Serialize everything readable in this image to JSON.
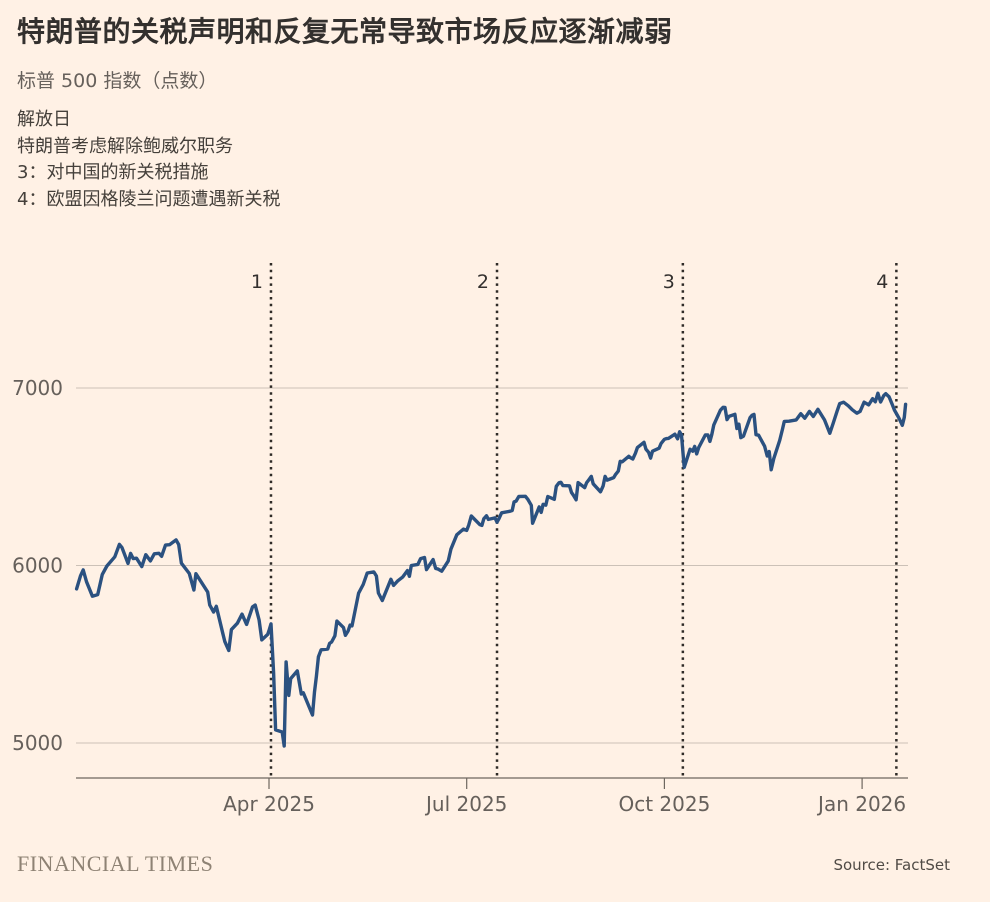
{
  "page": {
    "background": "#FFF1E5"
  },
  "header": {
    "title": "特朗普的关税声明和反复无常导致市场反应逐渐减弱",
    "subtitle": "标普 500 指数（点数）"
  },
  "annotations": [
    "解放日",
    "特朗普考虑解除鲍威尔职务",
    "3：对中国的新关税措施",
    "4：欧盟因格陵兰问题遭遇新关税"
  ],
  "footer": {
    "brand": "FINANCIAL TIMES",
    "source": "Source: FactSet"
  },
  "chart_data": {
    "type": "line",
    "title": "特朗普的关税声明和反复无常导致市场反应逐渐减弱",
    "ylabel": "标普 500 指数（点数）",
    "x_unit": "months_since_jan_2025",
    "xlim": [
      0.08,
      12.66
    ],
    "ylim": [
      4800,
      7700
    ],
    "grid": "horizontal",
    "legend": "none",
    "y_ticks": [
      5000,
      6000,
      7000
    ],
    "x_ticks": [
      {
        "label": "Apr 2025",
        "m": 3
      },
      {
        "label": "Jul 2025",
        "m": 6
      },
      {
        "label": "Oct 2025",
        "m": 9
      },
      {
        "label": "Jan 2026",
        "m": 12
      }
    ],
    "event_lines": [
      {
        "label": "1",
        "m": 3.03,
        "note": "解放日"
      },
      {
        "label": "2",
        "m": 6.46,
        "note": "特朗普考虑解除鲍威尔职务"
      },
      {
        "label": "3",
        "m": 9.28,
        "note": "对中国的新关税措施"
      },
      {
        "label": "4",
        "m": 12.52,
        "note": "欧盟因格陵兰问题遭遇新关税"
      }
    ],
    "colors": {
      "line": "#2B5180",
      "grid": "#CCC1B7",
      "axis": "#6E675F",
      "tick_text": "#66605B",
      "event_line": "#2F2B27",
      "event_text": "#33302E"
    },
    "series": [
      {
        "name": "标普 500 指数",
        "points": [
          [
            0.08,
            5868
          ],
          [
            0.14,
            5942
          ],
          [
            0.18,
            5975
          ],
          [
            0.23,
            5909
          ],
          [
            0.32,
            5827
          ],
          [
            0.4,
            5836
          ],
          [
            0.47,
            5950
          ],
          [
            0.54,
            5997
          ],
          [
            0.66,
            6049
          ],
          [
            0.73,
            6119
          ],
          [
            0.77,
            6101
          ],
          [
            0.86,
            6012
          ],
          [
            0.9,
            6068
          ],
          [
            0.94,
            6039
          ],
          [
            0.99,
            6041
          ],
          [
            1.07,
            5994
          ],
          [
            1.13,
            6061
          ],
          [
            1.2,
            6026
          ],
          [
            1.26,
            6066
          ],
          [
            1.33,
            6069
          ],
          [
            1.37,
            6052
          ],
          [
            1.43,
            6115
          ],
          [
            1.49,
            6117
          ],
          [
            1.59,
            6144
          ],
          [
            1.63,
            6118
          ],
          [
            1.67,
            6013
          ],
          [
            1.79,
            5955
          ],
          [
            1.86,
            5862
          ],
          [
            1.89,
            5954
          ],
          [
            2.07,
            5850
          ],
          [
            2.1,
            5778
          ],
          [
            2.16,
            5738
          ],
          [
            2.2,
            5770
          ],
          [
            2.3,
            5615
          ],
          [
            2.33,
            5572
          ],
          [
            2.39,
            5521
          ],
          [
            2.43,
            5639
          ],
          [
            2.52,
            5675
          ],
          [
            2.59,
            5726
          ],
          [
            2.66,
            5668
          ],
          [
            2.75,
            5767
          ],
          [
            2.79,
            5777
          ],
          [
            2.85,
            5693
          ],
          [
            2.89,
            5581
          ],
          [
            2.98,
            5612
          ],
          [
            3.0,
            5633
          ],
          [
            3.03,
            5671
          ],
          [
            3.07,
            5396
          ],
          [
            3.1,
            5074
          ],
          [
            3.2,
            5062
          ],
          [
            3.23,
            4983
          ],
          [
            3.26,
            5457
          ],
          [
            3.3,
            5268
          ],
          [
            3.33,
            5363
          ],
          [
            3.43,
            5406
          ],
          [
            3.49,
            5276
          ],
          [
            3.52,
            5283
          ],
          [
            3.66,
            5158
          ],
          [
            3.69,
            5288
          ],
          [
            3.72,
            5376
          ],
          [
            3.75,
            5485
          ],
          [
            3.79,
            5525
          ],
          [
            3.89,
            5529
          ],
          [
            3.92,
            5561
          ],
          [
            3.95,
            5569
          ],
          [
            4.0,
            5604
          ],
          [
            4.03,
            5687
          ],
          [
            4.13,
            5650
          ],
          [
            4.16,
            5607
          ],
          [
            4.2,
            5631
          ],
          [
            4.23,
            5664
          ],
          [
            4.26,
            5660
          ],
          [
            4.36,
            5844
          ],
          [
            4.43,
            5893
          ],
          [
            4.49,
            5958
          ],
          [
            4.59,
            5964
          ],
          [
            4.63,
            5941
          ],
          [
            4.66,
            5845
          ],
          [
            4.72,
            5803
          ],
          [
            4.85,
            5922
          ],
          [
            4.89,
            5888
          ],
          [
            4.95,
            5912
          ],
          [
            5.03,
            5936
          ],
          [
            5.1,
            5971
          ],
          [
            5.13,
            5939
          ],
          [
            5.16,
            6000
          ],
          [
            5.26,
            6006
          ],
          [
            5.3,
            6039
          ],
          [
            5.36,
            6045
          ],
          [
            5.39,
            5977
          ],
          [
            5.49,
            6033
          ],
          [
            5.53,
            5983
          ],
          [
            5.56,
            5981
          ],
          [
            5.62,
            5968
          ],
          [
            5.72,
            6025
          ],
          [
            5.76,
            6092
          ],
          [
            5.85,
            6173
          ],
          [
            5.95,
            6205
          ],
          [
            6.0,
            6198
          ],
          [
            6.03,
            6227
          ],
          [
            6.07,
            6279
          ],
          [
            6.2,
            6230
          ],
          [
            6.23,
            6226
          ],
          [
            6.26,
            6263
          ],
          [
            6.3,
            6280
          ],
          [
            6.33,
            6260
          ],
          [
            6.43,
            6268
          ],
          [
            6.46,
            6244
          ],
          [
            6.49,
            6264
          ],
          [
            6.53,
            6297
          ],
          [
            6.66,
            6306
          ],
          [
            6.69,
            6310
          ],
          [
            6.72,
            6359
          ],
          [
            6.75,
            6363
          ],
          [
            6.79,
            6389
          ],
          [
            6.89,
            6390
          ],
          [
            6.93,
            6371
          ],
          [
            6.98,
            6339
          ],
          [
            7.0,
            6238
          ],
          [
            7.1,
            6330
          ],
          [
            7.13,
            6299
          ],
          [
            7.16,
            6345
          ],
          [
            7.2,
            6340
          ],
          [
            7.23,
            6389
          ],
          [
            7.33,
            6373
          ],
          [
            7.36,
            6446
          ],
          [
            7.4,
            6466
          ],
          [
            7.43,
            6469
          ],
          [
            7.46,
            6450
          ],
          [
            7.56,
            6449
          ],
          [
            7.59,
            6411
          ],
          [
            7.62,
            6395
          ],
          [
            7.66,
            6370
          ],
          [
            7.69,
            6467
          ],
          [
            7.79,
            6439
          ],
          [
            7.82,
            6466
          ],
          [
            7.85,
            6481
          ],
          [
            7.89,
            6502
          ],
          [
            7.92,
            6460
          ],
          [
            8.03,
            6415
          ],
          [
            8.07,
            6448
          ],
          [
            8.1,
            6502
          ],
          [
            8.13,
            6481
          ],
          [
            8.23,
            6495
          ],
          [
            8.26,
            6513
          ],
          [
            8.3,
            6532
          ],
          [
            8.33,
            6587
          ],
          [
            8.36,
            6584
          ],
          [
            8.46,
            6615
          ],
          [
            8.49,
            6606
          ],
          [
            8.52,
            6600
          ],
          [
            8.56,
            6632
          ],
          [
            8.59,
            6664
          ],
          [
            8.69,
            6694
          ],
          [
            8.72,
            6656
          ],
          [
            8.76,
            6638
          ],
          [
            8.79,
            6605
          ],
          [
            8.82,
            6644
          ],
          [
            8.92,
            6661
          ],
          [
            8.95,
            6688
          ],
          [
            9.0,
            6711
          ],
          [
            9.03,
            6715
          ],
          [
            9.06,
            6716
          ],
          [
            9.16,
            6740
          ],
          [
            9.2,
            6714
          ],
          [
            9.23,
            6753
          ],
          [
            9.26,
            6735
          ],
          [
            9.3,
            6553
          ],
          [
            9.39,
            6655
          ],
          [
            9.43,
            6644
          ],
          [
            9.46,
            6671
          ],
          [
            9.49,
            6629
          ],
          [
            9.52,
            6664
          ],
          [
            9.62,
            6735
          ],
          [
            9.66,
            6735
          ],
          [
            9.69,
            6699
          ],
          [
            9.72,
            6738
          ],
          [
            9.75,
            6792
          ],
          [
            9.85,
            6875
          ],
          [
            9.89,
            6891
          ],
          [
            9.92,
            6890
          ],
          [
            9.95,
            6822
          ],
          [
            9.98,
            6840
          ],
          [
            10.07,
            6852
          ],
          [
            10.1,
            6772
          ],
          [
            10.13,
            6796
          ],
          [
            10.16,
            6720
          ],
          [
            10.2,
            6729
          ],
          [
            10.3,
            6833
          ],
          [
            10.33,
            6846
          ],
          [
            10.36,
            6851
          ],
          [
            10.39,
            6737
          ],
          [
            10.43,
            6734
          ],
          [
            10.52,
            6672
          ],
          [
            10.56,
            6617
          ],
          [
            10.59,
            6642
          ],
          [
            10.62,
            6539
          ],
          [
            10.66,
            6603
          ],
          [
            10.75,
            6705
          ],
          [
            10.79,
            6766
          ],
          [
            10.82,
            6812
          ],
          [
            10.89,
            6813
          ],
          [
            11.0,
            6820
          ],
          [
            11.07,
            6855
          ],
          [
            11.13,
            6830
          ],
          [
            11.2,
            6868
          ],
          [
            11.26,
            6840
          ],
          [
            11.33,
            6880
          ],
          [
            11.43,
            6820
          ],
          [
            11.51,
            6745
          ],
          [
            11.56,
            6800
          ],
          [
            11.62,
            6870
          ],
          [
            11.66,
            6912
          ],
          [
            11.72,
            6920
          ],
          [
            11.79,
            6900
          ],
          [
            11.85,
            6878
          ],
          [
            11.92,
            6858
          ],
          [
            11.97,
            6868
          ],
          [
            12.03,
            6920
          ],
          [
            12.1,
            6905
          ],
          [
            12.16,
            6940
          ],
          [
            12.2,
            6922
          ],
          [
            12.24,
            6970
          ],
          [
            12.28,
            6921
          ],
          [
            12.33,
            6958
          ],
          [
            12.36,
            6968
          ],
          [
            12.41,
            6950
          ],
          [
            12.46,
            6905
          ],
          [
            12.49,
            6876
          ],
          [
            12.56,
            6830
          ],
          [
            12.61,
            6790
          ],
          [
            12.64,
            6835
          ],
          [
            12.66,
            6908
          ]
        ]
      }
    ]
  }
}
